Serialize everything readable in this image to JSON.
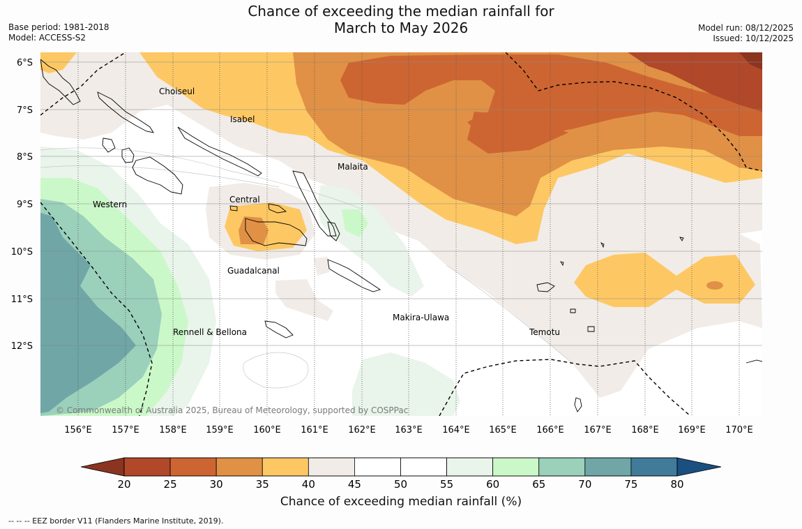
{
  "title_line1": "Chance of exceeding the median rainfall for",
  "title_line2": "March to May 2026",
  "base_period": "Base period: 1981-2018",
  "model": "Model: ACCESS-S2",
  "model_run": "Model run: 08/12/2025",
  "issued": "Issued: 10/12/2025",
  "copyright": "© Commonwealth of Australia 2025, Bureau of Meteorology, supported by COSPPac",
  "lon_labels": [
    "156°E",
    "157°E",
    "158°E",
    "159°E",
    "160°E",
    "161°E",
    "162°E",
    "163°E",
    "164°E",
    "165°E",
    "166°E",
    "167°E",
    "168°E",
    "169°E",
    "170°E"
  ],
  "lat_labels": [
    "6°S",
    "7°S",
    "8°S",
    "9°S",
    "10°S",
    "11°S",
    "12°S"
  ],
  "provinces": {
    "choiseul": "Choiseul",
    "isabel": "Isabel",
    "malaita": "Malaita",
    "central": "Central",
    "western": "Western",
    "guadalcanal": "Guadalcanal",
    "makira": "Makira-Ulawa",
    "temotu": "Temotu",
    "rennell": "Rennell & Bellona"
  },
  "colorbar": {
    "ticks": [
      "20",
      "25",
      "30",
      "35",
      "40",
      "45",
      "50",
      "55",
      "60",
      "65",
      "70",
      "75",
      "80"
    ],
    "colors": [
      "#b1482a",
      "#cd6532",
      "#e09145",
      "#fdc864",
      "#f1ece7",
      "#ffffff",
      "#ffffff",
      "#e9f4ea",
      "#cbf8c8",
      "#9bd0bb",
      "#70a6a6",
      "#417b9a"
    ],
    "low_color": "#8b3420",
    "high_color": "#1a4f80",
    "label": "Chance of exceeding median rainfall (%)"
  },
  "eez_note": "--  --  -- EEZ border V11 (Flanders Marine Institute, 2019)."
}
